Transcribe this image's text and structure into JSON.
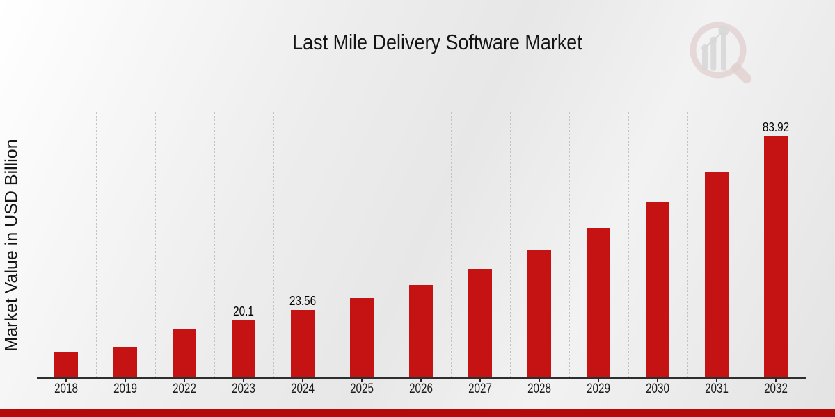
{
  "chart_data": {
    "type": "bar",
    "title": "Last Mile Delivery Software Market",
    "ylabel": "Market Value in USD Billion",
    "xlabel": "",
    "categories": [
      "2018",
      "2019",
      "2022",
      "2023",
      "2024",
      "2025",
      "2026",
      "2027",
      "2028",
      "2029",
      "2030",
      "2031",
      "2032"
    ],
    "values": [
      8.9,
      10.5,
      17.1,
      20.1,
      23.56,
      27.6,
      32.4,
      37.9,
      44.5,
      52.1,
      61.1,
      71.6,
      83.92
    ],
    "data_labels": {
      "2023": "20.1",
      "2024": "23.56",
      "2032": "83.92"
    },
    "bar_color": "#c51212",
    "grid": "vertical-dotted",
    "gridline_color": "#c3c3c3",
    "axis_line_color": "#2e2e2e",
    "tick_color": "#222222",
    "ylim": [
      0,
      92.8
    ],
    "legend": "none"
  },
  "branding": {
    "logo": "magnifier-bar-chart-watermark",
    "logo_ring_color": "#d8b9b9",
    "logo_bars_color": "#c6c6c6",
    "accent_bar_color": "#b40a0a"
  }
}
